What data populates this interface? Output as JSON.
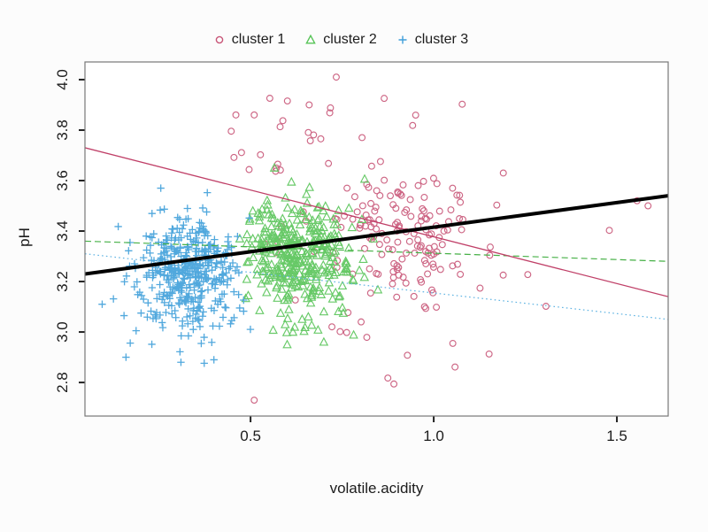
{
  "chart_data": {
    "type": "scatter",
    "title": "",
    "xlabel": "volatile.acidity",
    "ylabel": "pH",
    "xlim": [
      0.048,
      1.64
    ],
    "ylim": [
      2.667,
      4.07
    ],
    "grid": false,
    "legend_position": "top-center",
    "x_ticks": [
      "0.5",
      "1.0",
      "1.5"
    ],
    "x_tick_values": [
      0.5,
      1.0,
      1.5
    ],
    "y_ticks": [
      "2.8",
      "3.0",
      "3.2",
      "3.4",
      "3.6",
      "3.8",
      "4.0"
    ],
    "y_tick_values": [
      2.8,
      3.0,
      3.2,
      3.4,
      3.6,
      3.8,
      4.0
    ],
    "legend": [
      {
        "label": "cluster 1",
        "marker": "circle",
        "color": "#c85577"
      },
      {
        "label": "cluster 2",
        "marker": "triangle",
        "color": "#57c457"
      },
      {
        "label": "cluster 3",
        "marker": "plus",
        "color": "#3f9fda"
      }
    ],
    "seed": 1337,
    "clusters": [
      {
        "name": "cluster 1",
        "marker": "circle",
        "color": "#c85577",
        "blobs": [
          {
            "count": 120,
            "cx": 0.92,
            "cy": 3.38,
            "sx": 0.1,
            "sy": 0.12,
            "clipx": [
              0.72,
              1.27
            ],
            "clipy": [
              2.95,
              3.72
            ]
          },
          {
            "count": 55,
            "cx": 0.85,
            "cy": 3.3,
            "sx": 0.28,
            "sy": 0.26,
            "clipx": [
              0.52,
              1.62
            ],
            "clipy": [
              2.74,
              4.0
            ]
          },
          {
            "count": 22,
            "cx": 0.62,
            "cy": 3.78,
            "sx": 0.14,
            "sy": 0.11,
            "clipx": [
              0.36,
              1.0
            ],
            "clipy": [
              3.56,
              4.02
            ]
          }
        ],
        "extra_points": [
          [
            0.51,
            2.73
          ],
          [
            0.734,
            4.01
          ],
          [
            1.555,
            3.52
          ],
          [
            1.585,
            3.5
          ],
          [
            1.19,
            3.63
          ],
          [
            0.46,
            3.86
          ],
          [
            0.51,
            3.86
          ],
          [
            0.66,
            3.9
          ]
        ]
      },
      {
        "name": "cluster 2",
        "marker": "triangle",
        "color": "#57c457",
        "blobs": [
          {
            "count": 345,
            "cx": 0.63,
            "cy": 3.3,
            "sx": 0.075,
            "sy": 0.105,
            "clipx": [
              0.47,
              0.86
            ],
            "clipy": [
              2.98,
              3.64
            ]
          },
          {
            "count": 12,
            "cx": 0.63,
            "cy": 3.03,
            "sx": 0.09,
            "sy": 0.05,
            "clipx": [
              0.5,
              0.8
            ],
            "clipy": [
              2.94,
              3.1
            ]
          }
        ],
        "extra_points": [
          [
            0.565,
            3.65
          ],
          [
            0.7,
            2.96
          ],
          [
            0.6,
            2.95
          ]
        ]
      },
      {
        "name": "cluster 3",
        "marker": "plus",
        "color": "#3f9fda",
        "blobs": [
          {
            "count": 400,
            "cx": 0.335,
            "cy": 3.235,
            "sx": 0.068,
            "sy": 0.105,
            "clipx": [
              0.12,
              0.505
            ],
            "clipy": [
              2.95,
              3.56
            ]
          },
          {
            "count": 35,
            "cx": 0.3,
            "cy": 3.1,
            "sx": 0.1,
            "sy": 0.13,
            "clipx": [
              0.12,
              0.505
            ],
            "clipy": [
              2.86,
              3.52
            ]
          }
        ],
        "extra_points": [
          [
            0.095,
            3.11
          ],
          [
            0.16,
            2.9
          ],
          [
            0.31,
            2.88
          ],
          [
            0.4,
            2.89
          ],
          [
            0.255,
            3.57
          ]
        ]
      }
    ],
    "lines": [
      {
        "name": "cluster3-trend",
        "color": "#5fb3e2",
        "width": 1.2,
        "dash": "dotted",
        "x1": 0.048,
        "y1": 3.31,
        "x2": 1.64,
        "y2": 3.05
      },
      {
        "name": "cluster2-trend",
        "color": "#45b045",
        "width": 1.2,
        "dash": "dashed",
        "x1": 0.048,
        "y1": 3.36,
        "x2": 1.64,
        "y2": 3.28
      },
      {
        "name": "cluster1-trend",
        "color": "#c04068",
        "width": 1.3,
        "dash": "solid",
        "x1": 0.048,
        "y1": 3.73,
        "x2": 1.64,
        "y2": 3.14
      },
      {
        "name": "overall-trend",
        "color": "#000000",
        "width": 4.0,
        "dash": "solid",
        "x1": 0.048,
        "y1": 3.23,
        "x2": 1.64,
        "y2": 3.54
      }
    ]
  }
}
